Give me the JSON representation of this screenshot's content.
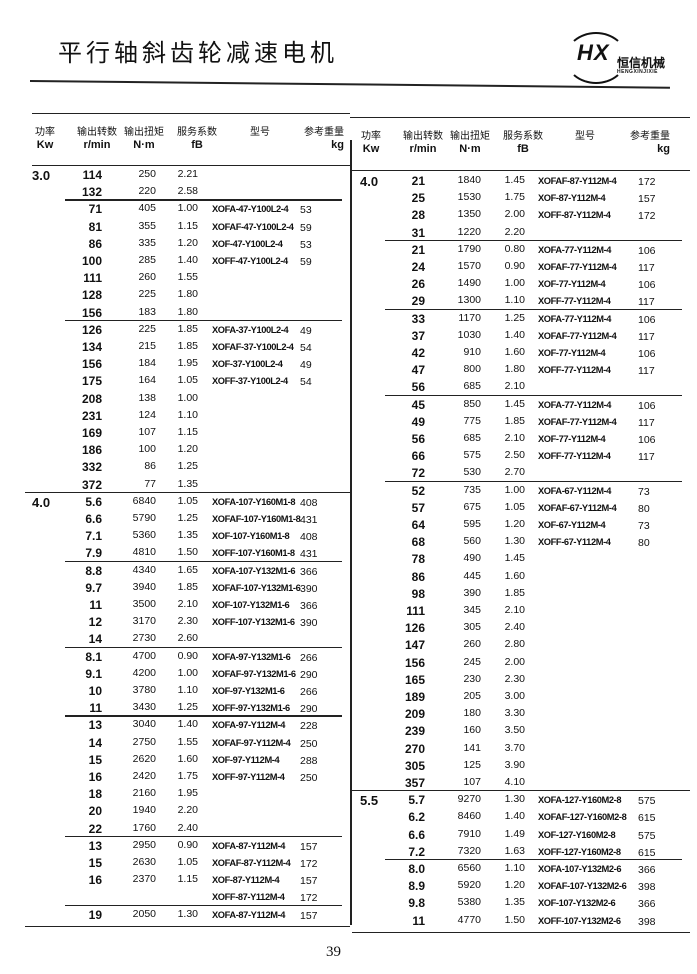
{
  "page": {
    "title": "平行轴斜齿轮减速电机",
    "page_number": "39",
    "logo": {
      "mark": "HX",
      "name_cn": "恒信机械",
      "name_en": "HENGXINJIXIE"
    }
  },
  "headers": [
    {
      "cn": "功率",
      "en": "Kw"
    },
    {
      "cn": "输出转数",
      "en": "r/min"
    },
    {
      "cn": "输出扭矩",
      "en": "N·m"
    },
    {
      "cn": "服务系数",
      "en": "fB"
    },
    {
      "cn": "型号",
      "en": ""
    },
    {
      "cn": "参考重量",
      "en": "kg"
    }
  ],
  "left_table": [
    {
      "power": "3.0",
      "rows": [
        [
          "114",
          "250",
          "2.21",
          "",
          ""
        ],
        [
          "132",
          "220",
          "2.58",
          "",
          ""
        ]
      ]
    },
    {
      "rows": [
        [
          "71",
          "405",
          "1.00",
          "XOFA-47-Y100L2-4",
          "53"
        ],
        [
          "81",
          "355",
          "1.15",
          "XOFAF-47-Y100L2-4",
          "59"
        ],
        [
          "86",
          "335",
          "1.20",
          "XOF-47-Y100L2-4",
          "53"
        ],
        [
          "100",
          "285",
          "1.40",
          "XOFF-47-Y100L2-4",
          "59"
        ],
        [
          "111",
          "260",
          "1.55",
          "",
          ""
        ],
        [
          "128",
          "225",
          "1.80",
          "",
          ""
        ],
        [
          "156",
          "183",
          "1.80",
          "",
          ""
        ]
      ]
    },
    {
      "rows": [
        [
          "126",
          "225",
          "1.85",
          "XOFA-37-Y100L2-4",
          "49"
        ],
        [
          "134",
          "215",
          "1.85",
          "XOFAF-37-Y100L2-4",
          "54"
        ],
        [
          "156",
          "184",
          "1.95",
          "XOF-37-Y100L2-4",
          "49"
        ],
        [
          "175",
          "164",
          "1.05",
          "XOFF-37-Y100L2-4",
          "54"
        ],
        [
          "208",
          "138",
          "1.00",
          "",
          ""
        ],
        [
          "231",
          "124",
          "1.10",
          "",
          ""
        ],
        [
          "169",
          "107",
          "1.15",
          "",
          ""
        ],
        [
          "186",
          "100",
          "1.20",
          "",
          ""
        ],
        [
          "332",
          "86",
          "1.25",
          "",
          ""
        ],
        [
          "372",
          "77",
          "1.35",
          "",
          ""
        ]
      ]
    },
    {
      "power": "4.0",
      "rows": [
        [
          "5.6",
          "6840",
          "1.05",
          "XOFA-107-Y160M1-8",
          "408"
        ],
        [
          "6.6",
          "5790",
          "1.25",
          "XOFAF-107-Y160M1-8",
          "431"
        ],
        [
          "7.1",
          "5360",
          "1.35",
          "XOF-107-Y160M1-8",
          "408"
        ],
        [
          "7.9",
          "4810",
          "1.50",
          "XOFF-107-Y160M1-8",
          "431"
        ]
      ]
    },
    {
      "rows": [
        [
          "8.8",
          "4340",
          "1.65",
          "XOFA-107-Y132M1-6",
          "366"
        ],
        [
          "9.7",
          "3940",
          "1.85",
          "XOFAF-107-Y132M1-6",
          "390"
        ],
        [
          "11",
          "3500",
          "2.10",
          "XOF-107-Y132M1-6",
          "366"
        ],
        [
          "12",
          "3170",
          "2.30",
          "XOFF-107-Y132M1-6",
          "390"
        ],
        [
          "14",
          "2730",
          "2.60",
          "",
          ""
        ]
      ]
    },
    {
      "rows": [
        [
          "8.1",
          "4700",
          "0.90",
          "XOFA-97-Y132M1-6",
          "266"
        ],
        [
          "9.1",
          "4200",
          "1.00",
          "XOFAF-97-Y132M1-6",
          "290"
        ],
        [
          "10",
          "3780",
          "1.10",
          "XOF-97-Y132M1-6",
          "266"
        ],
        [
          "11",
          "3430",
          "1.25",
          "XOFF-97-Y132M1-6",
          "290"
        ]
      ]
    },
    {
      "rows": [
        [
          "13",
          "3040",
          "1.40",
          "XOFA-97-Y112M-4",
          "228"
        ],
        [
          "14",
          "2750",
          "1.55",
          "XOFAF-97-Y112M-4",
          "250"
        ],
        [
          "15",
          "2620",
          "1.60",
          "XOF-97-Y112M-4",
          "288"
        ],
        [
          "16",
          "2420",
          "1.75",
          "XOFF-97-Y112M-4",
          "250"
        ],
        [
          "18",
          "2160",
          "1.95",
          "",
          ""
        ],
        [
          "20",
          "1940",
          "2.20",
          "",
          ""
        ],
        [
          "22",
          "1760",
          "2.40",
          "",
          ""
        ]
      ]
    },
    {
      "rows": [
        [
          "13",
          "2950",
          "0.90",
          "XOFA-87-Y112M-4",
          "157"
        ],
        [
          "15",
          "2630",
          "1.05",
          "XOFAF-87-Y112M-4",
          "172"
        ],
        [
          "16",
          "2370",
          "1.15",
          "XOF-87-Y112M-4",
          "157"
        ],
        [
          "",
          "",
          "",
          "XOFF-87-Y112M-4",
          "172"
        ]
      ]
    },
    {
      "rows": [
        [
          "19",
          "2050",
          "1.30",
          "XOFA-87-Y112M-4",
          "157"
        ]
      ]
    }
  ],
  "right_table": [
    {
      "power": "4.0",
      "rows": [
        [
          "21",
          "1840",
          "1.45",
          "XOFAF-87-Y112M-4",
          "172"
        ],
        [
          "25",
          "1530",
          "1.75",
          "XOF-87-Y112M-4",
          "157"
        ],
        [
          "28",
          "1350",
          "2.00",
          "XOFF-87-Y112M-4",
          "172"
        ],
        [
          "31",
          "1220",
          "2.20",
          "",
          ""
        ]
      ]
    },
    {
      "rows": [
        [
          "21",
          "1790",
          "0.80",
          "XOFA-77-Y112M-4",
          "106"
        ],
        [
          "24",
          "1570",
          "0.90",
          "XOFAF-77-Y112M-4",
          "117"
        ],
        [
          "26",
          "1490",
          "1.00",
          "XOF-77-Y112M-4",
          "106"
        ],
        [
          "29",
          "1300",
          "1.10",
          "XOFF-77-Y112M-4",
          "117"
        ]
      ]
    },
    {
      "rows": [
        [
          "33",
          "1170",
          "1.25",
          "XOFA-77-Y112M-4",
          "106"
        ],
        [
          "37",
          "1030",
          "1.40",
          "XOFAF-77-Y112M-4",
          "117"
        ],
        [
          "42",
          "910",
          "1.60",
          "XOF-77-Y112M-4",
          "106"
        ],
        [
          "47",
          "800",
          "1.80",
          "XOFF-77-Y112M-4",
          "117"
        ],
        [
          "56",
          "685",
          "2.10",
          "",
          ""
        ]
      ]
    },
    {
      "rows": [
        [
          "45",
          "850",
          "1.45",
          "XOFA-77-Y112M-4",
          "106"
        ],
        [
          "49",
          "775",
          "1.85",
          "XOFAF-77-Y112M-4",
          "117"
        ],
        [
          "56",
          "685",
          "2.10",
          "XOF-77-Y112M-4",
          "106"
        ],
        [
          "66",
          "575",
          "2.50",
          "XOFF-77-Y112M-4",
          "117"
        ],
        [
          "72",
          "530",
          "2.70",
          "",
          ""
        ]
      ]
    },
    {
      "rows": [
        [
          "52",
          "735",
          "1.00",
          "XOFA-67-Y112M-4",
          "73"
        ],
        [
          "57",
          "675",
          "1.05",
          "XOFAF-67-Y112M-4",
          "80"
        ],
        [
          "64",
          "595",
          "1.20",
          "XOF-67-Y112M-4",
          "73"
        ],
        [
          "68",
          "560",
          "1.30",
          "XOFF-67-Y112M-4",
          "80"
        ],
        [
          "78",
          "490",
          "1.45",
          "",
          ""
        ],
        [
          "86",
          "445",
          "1.60",
          "",
          ""
        ],
        [
          "98",
          "390",
          "1.85",
          "",
          ""
        ],
        [
          "111",
          "345",
          "2.10",
          "",
          ""
        ],
        [
          "126",
          "305",
          "2.40",
          "",
          ""
        ],
        [
          "147",
          "260",
          "2.80",
          "",
          ""
        ],
        [
          "156",
          "245",
          "2.00",
          "",
          ""
        ],
        [
          "165",
          "230",
          "2.30",
          "",
          ""
        ],
        [
          "189",
          "205",
          "3.00",
          "",
          ""
        ],
        [
          "209",
          "180",
          "3.30",
          "",
          ""
        ],
        [
          "239",
          "160",
          "3.50",
          "",
          ""
        ],
        [
          "270",
          "141",
          "3.70",
          "",
          ""
        ],
        [
          "305",
          "125",
          "3.90",
          "",
          ""
        ],
        [
          "357",
          "107",
          "4.10",
          "",
          ""
        ]
      ]
    },
    {
      "power": "5.5",
      "rows": [
        [
          "5.7",
          "9270",
          "1.30",
          "XOFA-127-Y160M2-8",
          "575"
        ],
        [
          "6.2",
          "8460",
          "1.40",
          "XOFAF-127-Y160M2-8",
          "615"
        ],
        [
          "6.6",
          "7910",
          "1.49",
          "XOF-127-Y160M2-8",
          "575"
        ],
        [
          "7.2",
          "7320",
          "1.63",
          "XOFF-127-Y160M2-8",
          "615"
        ]
      ]
    },
    {
      "rows": [
        [
          "8.0",
          "6560",
          "1.10",
          "XOFA-107-Y132M2-6",
          "366"
        ],
        [
          "8.9",
          "5920",
          "1.20",
          "XOFAF-107-Y132M2-6",
          "398"
        ],
        [
          "9.8",
          "5380",
          "1.35",
          "XOF-107-Y132M2-6",
          "366"
        ],
        [
          "11",
          "4770",
          "1.50",
          "XOFF-107-Y132M2-6",
          "398"
        ]
      ]
    }
  ]
}
